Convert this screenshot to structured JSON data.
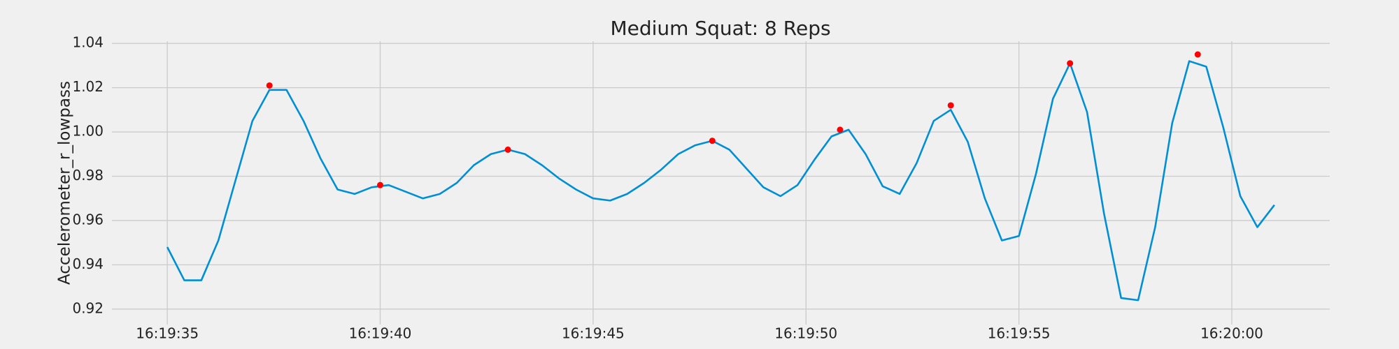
{
  "chart_data": {
    "type": "line",
    "title": "Medium Squat: 8 Reps",
    "y_label": "Accelerometer_r_lowpass",
    "series": [
      {
        "color": "#008fd5",
        "x": [
          0,
          0.4,
          0.8,
          1.2,
          1.6,
          2.0,
          2.4,
          2.8,
          3.2,
          3.6,
          4.0,
          4.4,
          4.8,
          5.2,
          5.6,
          6.0,
          6.4,
          6.8,
          7.2,
          7.6,
          8.0,
          8.4,
          8.8,
          9.2,
          9.6,
          10.0,
          10.4,
          10.8,
          11.2,
          11.6,
          12.0,
          12.4,
          12.8,
          13.2,
          13.6,
          14.0,
          14.4,
          14.8,
          15.2,
          15.6,
          16.0,
          16.4,
          16.8,
          17.2,
          17.6,
          18.0,
          18.4,
          18.8,
          19.2,
          19.6,
          20.0,
          20.4,
          20.8,
          21.2,
          21.6,
          22.0,
          22.4,
          22.8,
          23.2,
          23.6,
          24.0,
          24.4,
          24.8,
          25.2,
          25.6,
          26.0
        ],
        "values": [
          0.948,
          0.933,
          0.933,
          0.951,
          0.978,
          1.005,
          1.019,
          1.019,
          1.005,
          0.988,
          0.974,
          0.972,
          0.975,
          0.976,
          0.973,
          0.97,
          0.972,
          0.977,
          0.985,
          0.99,
          0.992,
          0.99,
          0.985,
          0.979,
          0.974,
          0.97,
          0.969,
          0.972,
          0.977,
          0.983,
          0.99,
          0.994,
          0.996,
          0.992,
          0.9835,
          0.975,
          0.971,
          0.976,
          0.9875,
          0.998,
          1.001,
          0.99,
          0.9755,
          0.972,
          0.986,
          1.005,
          1.01,
          0.9955,
          0.97,
          0.951,
          0.953,
          0.981,
          1.015,
          1.031,
          1.009,
          0.963,
          0.925,
          0.924,
          0.957,
          1.004,
          1.032,
          1.0295,
          1.002,
          0.971,
          0.957,
          0.967
        ]
      },
      {
        "color": "#ff0000",
        "marker": "o",
        "x": [
          2.4,
          5.0,
          8.0,
          12.8,
          15.8,
          18.4,
          21.2,
          24.2
        ],
        "values": [
          1.021,
          0.976,
          0.992,
          0.996,
          1.001,
          1.012,
          1.031,
          1.035
        ]
      }
    ],
    "xlim": [
      -1.3,
      27.3
    ],
    "xticks": [
      {
        "value": 0,
        "label": "16:19:35"
      },
      {
        "value": 5,
        "label": "16:19:40"
      },
      {
        "value": 10,
        "label": "16:19:45"
      },
      {
        "value": 15,
        "label": "16:19:50"
      },
      {
        "value": 20,
        "label": "16:19:55"
      },
      {
        "value": 25,
        "label": "16:20:00"
      }
    ],
    "ylim": [
      0.913,
      1.041
    ],
    "yticks": [
      0.92,
      0.94,
      0.96,
      0.98,
      {
        "value": 1,
        "label": "1.00"
      },
      1.02,
      1.04
    ],
    "grid": true
  }
}
